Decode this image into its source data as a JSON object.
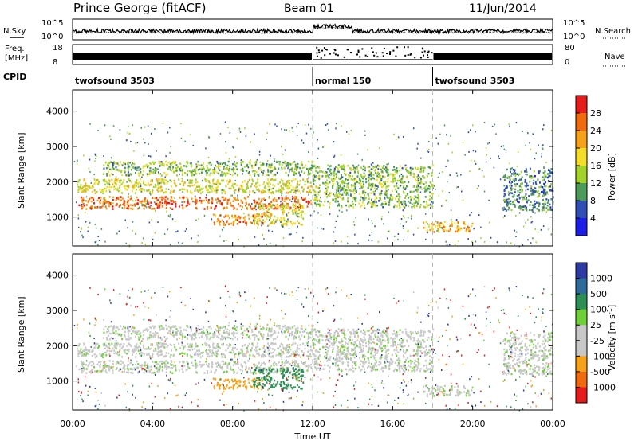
{
  "header": {
    "station": "Prince George (fitACF)",
    "beam": "Beam 01",
    "date": "11/Jun/2014"
  },
  "noise_panel": {
    "left_label": "N.Sky",
    "right_label": "N.Search",
    "left_ticks": [
      "10^5",
      "10^0"
    ],
    "right_ticks": [
      "10^5",
      "10^0"
    ]
  },
  "freq_panel": {
    "left_label_1": "Freq.",
    "left_label_2": "[MHz]",
    "left_ticks": [
      "18",
      "8"
    ],
    "right_label": "Nave",
    "right_ticks": [
      "80",
      "0"
    ]
  },
  "cpid": {
    "label": "CPID",
    "segments": [
      {
        "name": "twofsound 3503",
        "start_hour": 0,
        "end_hour": 12
      },
      {
        "name": "normal 150",
        "start_hour": 12,
        "end_hour": 18
      },
      {
        "name": "twofsound 3503",
        "start_hour": 18,
        "end_hour": 24
      }
    ]
  },
  "power_scale": {
    "title": "Power [dB]",
    "ticks": [
      "28",
      "24",
      "20",
      "16",
      "12",
      "8",
      "4"
    ],
    "colors": [
      "#e51c1c",
      "#f06a10",
      "#f5a21a",
      "#f4dd2a",
      "#a3d32b",
      "#4c9a5a",
      "#2f4fb5",
      "#1d1de8"
    ]
  },
  "velocity_scale": {
    "title": "Velocity [m s",
    "title_sup": "-1",
    "title_end": "]",
    "ticks": [
      "1000",
      "500",
      "100",
      "25",
      "-25",
      "-100",
      "-500",
      "-1000"
    ],
    "colors": [
      "#2b3ba3",
      "#2f6b9a",
      "#2d8f55",
      "#6fd03a",
      "#c8c8c8",
      "#c8c8c8",
      "#f5a21a",
      "#f06a10",
      "#e51c1c"
    ]
  },
  "chart_data": {
    "type": "heatmap",
    "title": "Prince George (fitACF)",
    "xlabel": "Time UT",
    "ylabel": "Slant Range [km]",
    "x_ticks": [
      "00:00",
      "04:00",
      "08:00",
      "12:00",
      "16:00",
      "20:00",
      "00:00"
    ],
    "y_ticks": [
      "1000",
      "2000",
      "3000",
      "4000"
    ],
    "xlim_hours": [
      0,
      24
    ],
    "ylim_km": [
      180,
      4600
    ],
    "panels": [
      {
        "name": "Power",
        "units": "dB",
        "range": [
          0,
          30
        ]
      },
      {
        "name": "Velocity",
        "units": "m s-1",
        "range": [
          -1000,
          1000
        ]
      }
    ],
    "scatter_bands": [
      {
        "t0": 0.2,
        "t1": 12.0,
        "r0": 1250,
        "r1": 1600,
        "power": 24,
        "velocity": 0
      },
      {
        "t0": 0.2,
        "t1": 12.0,
        "r0": 1700,
        "r1": 2100,
        "power": 16,
        "velocity": 0
      },
      {
        "t0": 1.5,
        "t1": 12.0,
        "r0": 2200,
        "r1": 2600,
        "power": 12,
        "velocity": 0
      },
      {
        "t0": 7.0,
        "t1": 9.5,
        "r0": 800,
        "r1": 1100,
        "power": 22,
        "velocity": -400
      },
      {
        "t0": 9.0,
        "t1": 11.5,
        "r0": 800,
        "r1": 1400,
        "power": 16,
        "velocity": 300
      },
      {
        "t0": 12.0,
        "t1": 18.0,
        "r0": 1300,
        "r1": 2500,
        "power": 12,
        "velocity": 0
      },
      {
        "t0": 17.5,
        "t1": 20.0,
        "r0": 600,
        "r1": 900,
        "power": 20,
        "velocity": 0
      },
      {
        "t0": 21.5,
        "t1": 24.0,
        "r0": 1200,
        "r1": 2400,
        "power": 8,
        "velocity": 0
      }
    ]
  }
}
